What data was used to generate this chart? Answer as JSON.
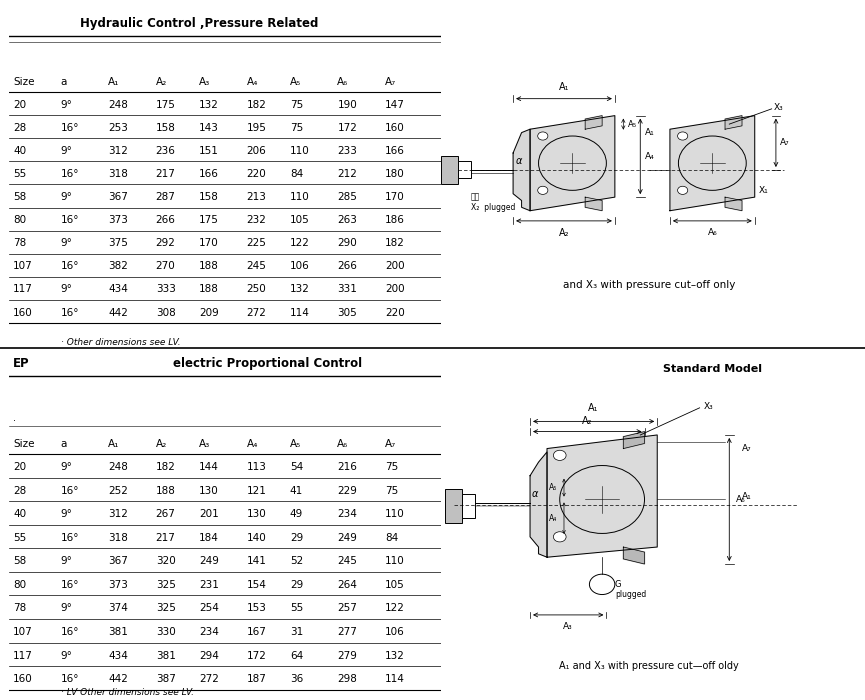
{
  "title1": "Hydraulic Control ,Pressure Related",
  "title2_label": "EP",
  "title2": "electric Proportional Control",
  "headers": [
    "Size",
    "a",
    "A₁",
    "A₂",
    "A₃",
    "A₄",
    "A₅",
    "A₆",
    "A₇"
  ],
  "table1_rows": [
    [
      "20",
      "9°",
      "248",
      "175",
      "132",
      "182",
      "75",
      "190",
      "147"
    ],
    [
      "28",
      "16°",
      "253",
      "158",
      "143",
      "195",
      "75",
      "172",
      "160"
    ],
    [
      "40",
      "9°",
      "312",
      "236",
      "151",
      "206",
      "110",
      "233",
      "166"
    ],
    [
      "55",
      "16°",
      "318",
      "217",
      "166",
      "220",
      "84",
      "212",
      "180"
    ],
    [
      "58",
      "9°",
      "367",
      "287",
      "158",
      "213",
      "110",
      "285",
      "170"
    ],
    [
      "80",
      "16°",
      "373",
      "266",
      "175",
      "232",
      "105",
      "263",
      "186"
    ],
    [
      "78",
      "9°",
      "375",
      "292",
      "170",
      "225",
      "122",
      "290",
      "182"
    ],
    [
      "107",
      "16°",
      "382",
      "270",
      "188",
      "245",
      "106",
      "266",
      "200"
    ],
    [
      "117",
      "9°",
      "434",
      "333",
      "188",
      "250",
      "132",
      "331",
      "200"
    ],
    [
      "160",
      "16°",
      "442",
      "308",
      "209",
      "272",
      "114",
      "305",
      "220"
    ]
  ],
  "table1_footnote": "· Other dimensions see LV.",
  "table2_rows": [
    [
      "20",
      "9°",
      "248",
      "182",
      "144",
      "113",
      "54",
      "216",
      "75"
    ],
    [
      "28",
      "16°",
      "252",
      "188",
      "130",
      "121",
      "41",
      "229",
      "75"
    ],
    [
      "40",
      "9°",
      "312",
      "267",
      "201",
      "130",
      "49",
      "234",
      "110"
    ],
    [
      "55",
      "16°",
      "318",
      "217",
      "184",
      "140",
      "29",
      "249",
      "84"
    ],
    [
      "58",
      "9°",
      "367",
      "320",
      "249",
      "141",
      "52",
      "245",
      "110"
    ],
    [
      "80",
      "16°",
      "373",
      "325",
      "231",
      "154",
      "29",
      "264",
      "105"
    ],
    [
      "78",
      "9°",
      "374",
      "325",
      "254",
      "153",
      "55",
      "257",
      "122"
    ],
    [
      "107",
      "16°",
      "381",
      "330",
      "234",
      "167",
      "31",
      "277",
      "106"
    ],
    [
      "117",
      "9°",
      "434",
      "381",
      "294",
      "172",
      "64",
      "279",
      "132"
    ],
    [
      "160",
      "16°",
      "442",
      "387",
      "272",
      "187",
      "36",
      "298",
      "114"
    ]
  ],
  "table2_footnote": "· LV Other dimensions see LV.",
  "caption1": "and X₃ with pressure cut–off only",
  "caption2": "Standard Model",
  "caption3": "A₁ and X₃ with pressure cut—off oldy",
  "bg_color": "#ffffff",
  "text_color": "#000000"
}
